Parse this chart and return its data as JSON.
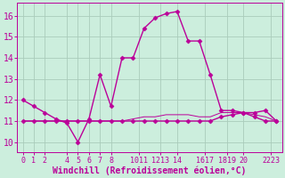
{
  "xlabel": "Windchill (Refroidissement éolien,°C)",
  "bg_color": "#cceedd",
  "grid_color": "#aaccbb",
  "line_color": "#bb0099",
  "x_hours": [
    0,
    1,
    2,
    3,
    4,
    5,
    6,
    7,
    8,
    9,
    10,
    11,
    12,
    13,
    14,
    15,
    16,
    17,
    18,
    19,
    20,
    21,
    22,
    23
  ],
  "y_series1": [
    12.0,
    11.7,
    11.4,
    11.1,
    10.9,
    10.0,
    11.1,
    13.2,
    11.7,
    14.0,
    14.0,
    15.4,
    15.9,
    16.1,
    16.2,
    14.8,
    14.8,
    13.2,
    11.5,
    11.5,
    11.4,
    11.4,
    11.5,
    11.0
  ],
  "y_series2": [
    11.0,
    11.0,
    11.0,
    11.0,
    11.0,
    11.0,
    11.0,
    11.0,
    11.0,
    11.0,
    11.0,
    11.0,
    11.0,
    11.0,
    11.0,
    11.0,
    11.0,
    11.0,
    11.2,
    11.3,
    11.4,
    11.2,
    11.0,
    11.0
  ],
  "y_series3": [
    11.0,
    11.0,
    11.0,
    11.0,
    11.0,
    11.0,
    11.0,
    11.0,
    11.0,
    11.0,
    11.1,
    11.2,
    11.2,
    11.3,
    11.3,
    11.3,
    11.2,
    11.2,
    11.4,
    11.4,
    11.4,
    11.3,
    11.2,
    11.0
  ],
  "ylim": [
    9.5,
    16.6
  ],
  "yticks": [
    10,
    11,
    12,
    13,
    14,
    15,
    16
  ],
  "xtick_positions": [
    0,
    1,
    2,
    4,
    5,
    6,
    7,
    8,
    10.5,
    12.5,
    14,
    16.5,
    18.5,
    20,
    22.5
  ],
  "xtick_labels": [
    "0",
    "1",
    "2",
    "4",
    "5",
    "6",
    "7",
    "8",
    "1011",
    "1213",
    "14",
    "1617",
    "1819",
    "20",
    "2223"
  ],
  "xlim": [
    -0.5,
    23.5
  ],
  "fontsize_xlabel": 7,
  "fontsize_yticks": 7,
  "fontsize_xticks": 6,
  "lw": 1.0,
  "marker": "D",
  "markersize": 2.5
}
